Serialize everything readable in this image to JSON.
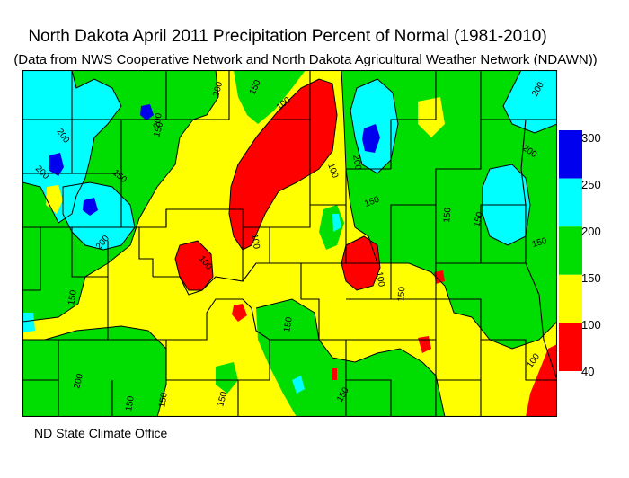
{
  "title": "North Dakota April 2011 Precipitation Percent of Normal (1981-2010)",
  "subtitle": "(Data from NWS Cooperative Network and North Dakota Agricultural Weather Network (NDAWN))",
  "credit": "ND State Climate Office",
  "legend": {
    "bands": [
      {
        "min": 250,
        "max": 300,
        "color": "#0000ee"
      },
      {
        "min": 200,
        "max": 250,
        "color": "#00ffff"
      },
      {
        "min": 150,
        "max": 200,
        "color": "#00dd00"
      },
      {
        "min": 100,
        "max": 150,
        "color": "#ffff00"
      },
      {
        "min": 40,
        "max": 100,
        "color": "#ff0000"
      }
    ],
    "labels": [
      "300",
      "250",
      "200",
      "150",
      "100",
      "40"
    ]
  },
  "contour_labels": [
    "200",
    "150",
    "200",
    "200",
    "100",
    "200",
    "100",
    "150",
    "150",
    "200",
    "200",
    "200",
    "150",
    "200",
    "100",
    "150",
    "100",
    "150",
    "150",
    "150",
    "150",
    "150",
    "100",
    "150",
    "200",
    "150",
    "150",
    "150",
    "100"
  ]
}
